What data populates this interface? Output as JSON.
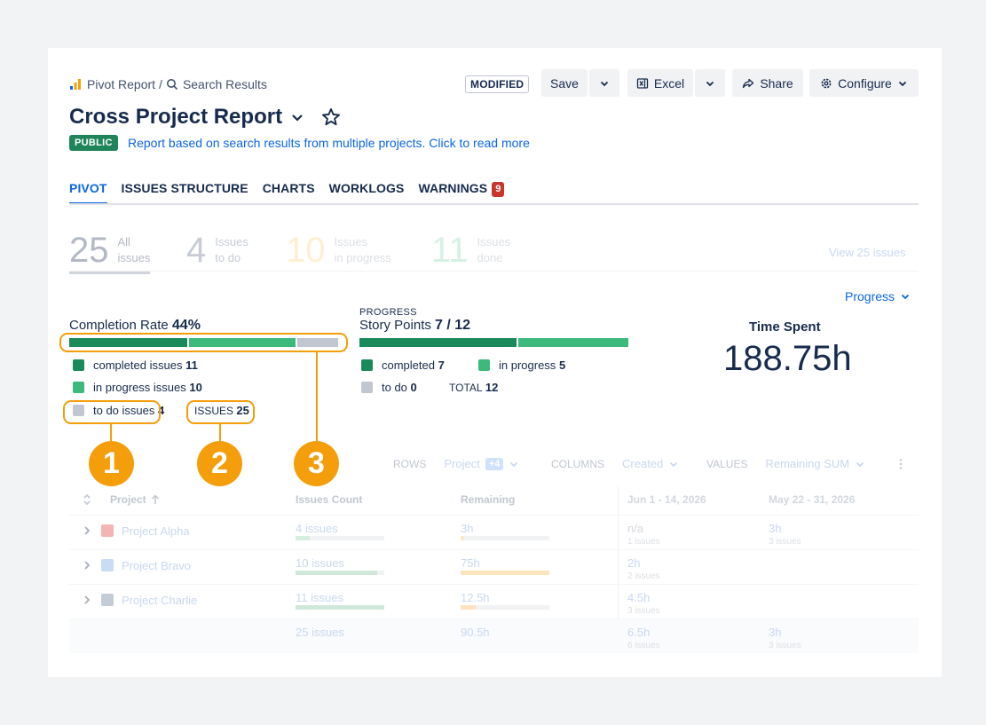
{
  "breadcrumb": {
    "root": "Pivot Report",
    "separator": "/",
    "current": "Search Results"
  },
  "toolbar": {
    "modified": "MODIFIED",
    "save": "Save",
    "excel": "Excel",
    "share": "Share",
    "configure": "Configure"
  },
  "report": {
    "title": "Cross Project Report",
    "visibility": "PUBLIC",
    "description": "Report based on search results from multiple projects. Click to read more"
  },
  "tabs": [
    {
      "label": "PIVOT"
    },
    {
      "label": "ISSUES STRUCTURE"
    },
    {
      "label": "CHARTS"
    },
    {
      "label": "WORKLOGS"
    },
    {
      "label": "WARNINGS",
      "badge": "9"
    }
  ],
  "summary": {
    "all": {
      "value": "25",
      "line1": "All",
      "line2": "issues"
    },
    "todo": {
      "value": "4",
      "line1": "Issues",
      "line2": "to do"
    },
    "progress": {
      "value": "10",
      "line1": "Issues",
      "line2": "in progress"
    },
    "done": {
      "value": "11",
      "line1": "Issues",
      "line2": "done"
    },
    "view_link": "View 25 issues"
  },
  "progress_dropdown": "Progress",
  "completion": {
    "title": "Completion Rate",
    "rate": "44%",
    "segments": [
      {
        "label": "completed issues",
        "value": 11,
        "color": "#1a8a5a"
      },
      {
        "label": "in progress issues",
        "value": 10,
        "color": "#3cb97b"
      },
      {
        "label": "to do issues",
        "value": 4,
        "color": "#c1c7d0"
      }
    ],
    "total_label": "ISSUES",
    "total": "25"
  },
  "story_points": {
    "small_label": "PROGRESS",
    "title": "Story Points",
    "value": "7 / 12",
    "segments": [
      {
        "label": "completed",
        "value": 7,
        "color": "#1a8a5a"
      },
      {
        "label": "in progress",
        "value": 5,
        "color": "#3cb97b"
      },
      {
        "label": "to do",
        "value": 0,
        "color": "#c1c7d0"
      }
    ],
    "total_label": "TOTAL",
    "total": "12"
  },
  "time_spent": {
    "title": "Time Spent",
    "value": "188.75h"
  },
  "callouts": [
    "1",
    "2",
    "3"
  ],
  "accent_color": "#f59e0b",
  "pivot": {
    "rows_label": "ROWS",
    "rows_value": "Project",
    "rows_extra": "+4",
    "columns_label": "COLUMNS",
    "columns_value": "Created",
    "values_label": "VALUES",
    "values_value": "Remaining SUM",
    "headers": {
      "project": "Project",
      "count": "Issues Count",
      "remaining": "Remaining",
      "col1": "Jun 1 - 14, 2026",
      "col2": "May 22 - 31, 2026"
    },
    "rows": [
      {
        "name": "Project Alpha",
        "count": "4 issues",
        "count_frac": 0.16,
        "remaining": "3h",
        "remaining_frac": 0.04,
        "c1": "n/a",
        "c1_sub": "1 issues",
        "c2": "3h",
        "c2_sub": "3 issues",
        "icon_color": "#f4b4b4"
      },
      {
        "name": "Project Bravo",
        "count": "10 issues",
        "count_frac": 0.92,
        "remaining": "75h",
        "remaining_frac": 1.0,
        "c1": "2h",
        "c1_sub": "2 issues",
        "c2": "",
        "c2_sub": "",
        "icon_color": "#c8dcf4"
      },
      {
        "name": "Project Charlie",
        "count": "11 issues",
        "count_frac": 1.0,
        "remaining": "12.5h",
        "remaining_frac": 0.17,
        "c1": "4.5h",
        "c1_sub": "3 issues",
        "c2": "",
        "c2_sub": "",
        "icon_color": "#c4ccd8"
      }
    ],
    "totals": {
      "count": "25 issues",
      "remaining": "90.5h",
      "c1": "6.5h",
      "c1_sub": "6 issues",
      "c2": "3h",
      "c2_sub": "3 issues"
    }
  }
}
